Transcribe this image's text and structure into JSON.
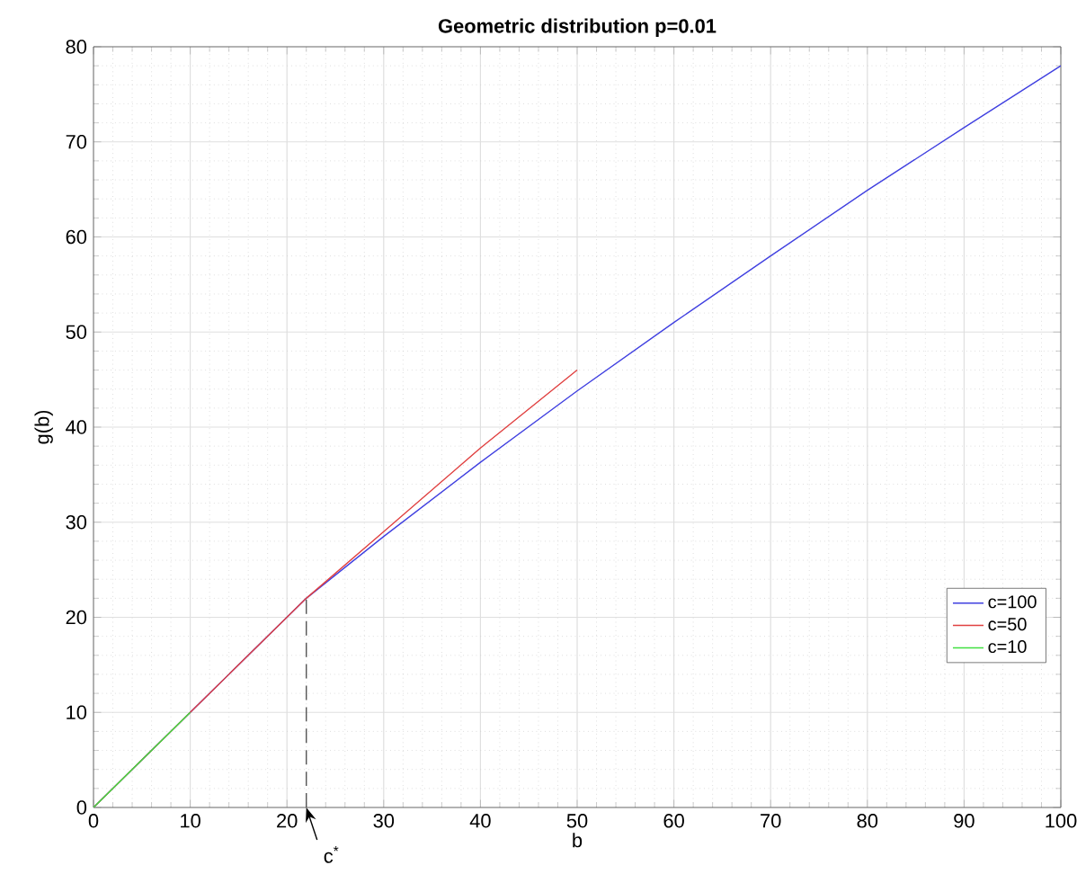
{
  "chart_data": {
    "type": "line",
    "title": "Geometric distribution p=0.01",
    "xlabel": "b",
    "ylabel": "g(b)",
    "series": [
      {
        "name": "c=100",
        "color": "#4040e0",
        "x": [
          0,
          22,
          30,
          40,
          50,
          60,
          70,
          80,
          90,
          100
        ],
        "values": [
          0,
          22,
          28.5,
          36.3,
          43.8,
          51,
          58,
          64.9,
          71.5,
          78
        ]
      },
      {
        "name": "c=50",
        "color": "#e04040",
        "x": [
          0,
          22,
          30,
          40,
          50
        ],
        "values": [
          0,
          22,
          29,
          37.8,
          46
        ]
      },
      {
        "name": "c=10",
        "color": "#40e040",
        "x": [
          0,
          10
        ],
        "values": [
          0,
          10
        ]
      },
      {
        "type": "line",
        "color": "#555555",
        "line_style": "dashed",
        "x": [
          22,
          22
        ],
        "values": [
          0,
          22
        ]
      }
    ],
    "annotations": [
      {
        "text": "c$^{*}$",
        "x": 22,
        "y": 0
      }
    ],
    "xlim": [
      0,
      100
    ],
    "ylim": [
      0,
      80
    ],
    "xticks": [
      0,
      10,
      20,
      30,
      40,
      50,
      60,
      70,
      80,
      90,
      100
    ],
    "yticks": [
      0,
      10,
      20,
      30,
      40,
      50,
      60,
      70,
      80
    ],
    "grid": true,
    "legend": "bottom right"
  }
}
